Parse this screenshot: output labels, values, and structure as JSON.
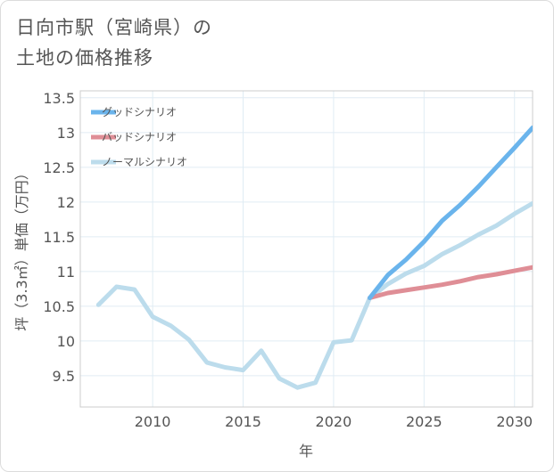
{
  "chart_data": {
    "type": "line",
    "title_line1": "日向市駅（宮崎県）の",
    "title_line2": "土地の価格推移",
    "xlabel": "年",
    "ylabel": "坪（3.3㎡）単価（万円）",
    "xlim": [
      2006,
      2031
    ],
    "ylim": [
      9.05,
      13.6
    ],
    "x_ticks": [
      2010,
      2015,
      2020,
      2025,
      2030
    ],
    "y_ticks": [
      9.5,
      10,
      10.5,
      11,
      11.5,
      12,
      12.5,
      13,
      13.5
    ],
    "legend": [
      "グッドシナリオ",
      "バッドシナリオ",
      "ノーマルシナリオ"
    ],
    "series": [
      {
        "name": "グッドシナリオ",
        "color": "#6ab4ec",
        "x": [
          2022,
          2023,
          2024,
          2025,
          2026,
          2027,
          2028,
          2029,
          2030,
          2031
        ],
        "values": [
          10.62,
          10.95,
          11.17,
          11.43,
          11.73,
          11.96,
          12.22,
          12.5,
          12.78,
          13.07
        ]
      },
      {
        "name": "バッドシナリオ",
        "color": "#df8e96",
        "x": [
          2022,
          2023,
          2024,
          2025,
          2026,
          2027,
          2028,
          2029,
          2030,
          2031
        ],
        "values": [
          10.62,
          10.69,
          10.73,
          10.77,
          10.81,
          10.86,
          10.92,
          10.96,
          11.01,
          11.06
        ]
      },
      {
        "name": "ノーマルシナリオ",
        "color": "#bcdcec",
        "x": [
          2007,
          2008,
          2009,
          2010,
          2011,
          2012,
          2013,
          2014,
          2015,
          2016,
          2017,
          2018,
          2019,
          2020,
          2021,
          2022,
          2023,
          2024,
          2025,
          2026,
          2027,
          2028,
          2029,
          2030,
          2031
        ],
        "values": [
          10.52,
          10.78,
          10.74,
          10.35,
          10.22,
          10.02,
          9.69,
          9.62,
          9.58,
          9.86,
          9.46,
          9.33,
          9.4,
          9.98,
          10.01,
          10.62,
          10.82,
          10.97,
          11.08,
          11.25,
          11.38,
          11.53,
          11.66,
          11.83,
          11.98
        ]
      }
    ]
  }
}
